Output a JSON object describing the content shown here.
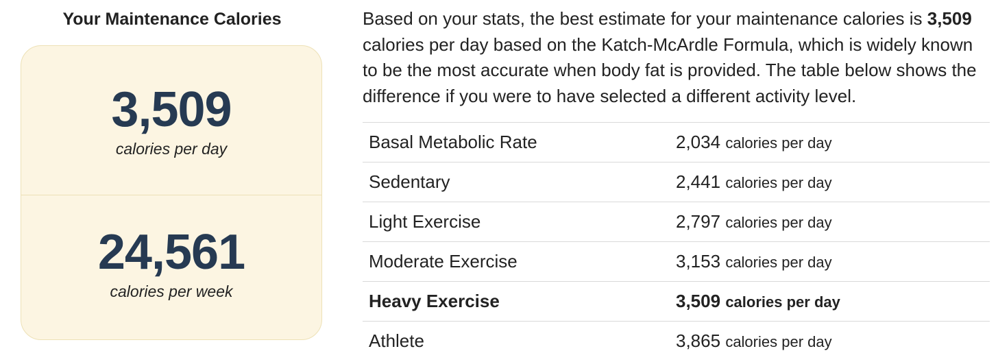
{
  "summary": {
    "title": "Your Maintenance Calories",
    "daily": {
      "value": "3,509",
      "unit": "calories per day"
    },
    "weekly": {
      "value": "24,561",
      "unit": "calories per week"
    }
  },
  "intro": {
    "part1": "Based on your stats, the best estimate for your maintenance calories is ",
    "highlight": "3,509",
    "part2": " calories per day based on the Katch-McArdle Formula, which is widely known to be the most accurate when body fat is provided. The table below shows the difference if you were to have selected a different activity level."
  },
  "table": {
    "rows": [
      {
        "label": "Basal Metabolic Rate",
        "value": "2,034",
        "suffix": "calories per day",
        "highlighted": false
      },
      {
        "label": "Sedentary",
        "value": "2,441",
        "suffix": "calories per day",
        "highlighted": false
      },
      {
        "label": "Light Exercise",
        "value": "2,797",
        "suffix": "calories per day",
        "highlighted": false
      },
      {
        "label": "Moderate Exercise",
        "value": "3,153",
        "suffix": "calories per day",
        "highlighted": false
      },
      {
        "label": "Heavy Exercise",
        "value": "3,509",
        "suffix": "calories per day",
        "highlighted": true
      },
      {
        "label": "Athlete",
        "value": "3,865",
        "suffix": "calories per day",
        "highlighted": false
      }
    ]
  },
  "colors": {
    "card_background": "#fcf5e2",
    "card_border": "#ede1b6",
    "number_color": "#263a52",
    "divider": "#d9d9d9"
  }
}
